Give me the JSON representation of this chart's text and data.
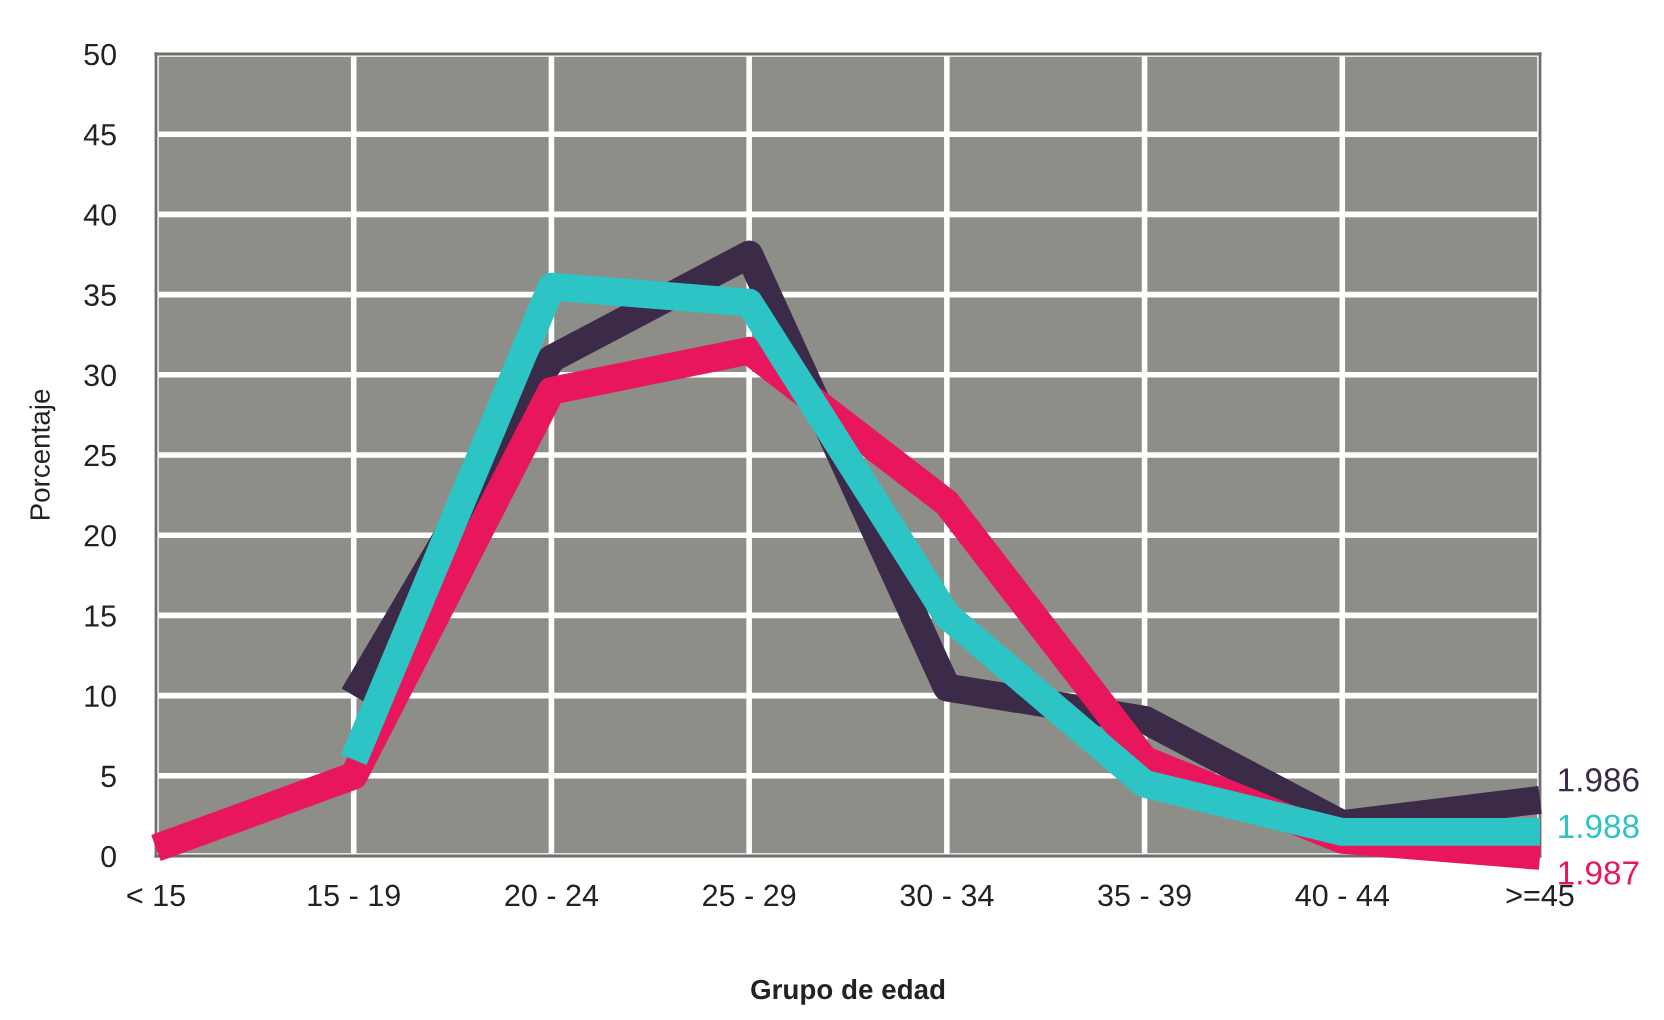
{
  "chart_data": {
    "type": "line",
    "xlabel": "Grupo de edad",
    "ylabel": "Porcentaje",
    "categories": [
      "< 15",
      "15 - 19",
      "20 - 24",
      "25 - 29",
      "30 - 34",
      "35 - 39",
      "40 - 44",
      ">=45"
    ],
    "series": [
      {
        "name": "1.986",
        "color": "#3b2a48",
        "values": [
          null,
          10,
          31,
          37.5,
          10.5,
          8.5,
          2,
          3.5
        ]
      },
      {
        "name": "1.987",
        "color": "#e8175d",
        "values": [
          0.5,
          5,
          29,
          31.5,
          22,
          6,
          1,
          0
        ]
      },
      {
        "name": "1.988",
        "color": "#2cc4c4",
        "values": [
          null,
          6,
          35.5,
          34.5,
          15,
          4.5,
          1.5,
          1.5
        ]
      }
    ],
    "ylim": [
      0,
      50
    ],
    "yticks": [
      0,
      5,
      10,
      15,
      20,
      25,
      30,
      35,
      40,
      45,
      50
    ],
    "grid": true,
    "legend": false,
    "marker": "none",
    "line_style": "solid"
  }
}
